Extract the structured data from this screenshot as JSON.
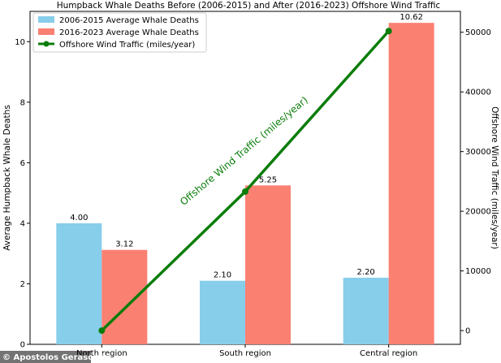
{
  "chart_data": {
    "type": "bar",
    "title": "Humpback Whale Deaths Before (2006-2015) and After (2016-2023) Offshore Wind Traffic",
    "categories": [
      "North region",
      "South region",
      "Central region"
    ],
    "ylabel": "Average Humpback Whale Deaths",
    "ylabel_right": "Offshore Wind Traffic (miles/year)",
    "ylim": [
      0,
      11
    ],
    "ylim_right": [
      -2300,
      53500
    ],
    "yticks": [
      0,
      2,
      4,
      6,
      8,
      10
    ],
    "yticks_right": [
      0,
      10000,
      20000,
      30000,
      40000,
      50000
    ],
    "legend_position": "top-left",
    "grid": false,
    "series": [
      {
        "name": "2006-2015 Average Whale Deaths",
        "kind": "bar",
        "axis": "left",
        "color": "#87ceeb",
        "values": [
          4.0,
          2.1,
          2.2
        ],
        "labels": [
          "4.00",
          "2.10",
          "2.20"
        ]
      },
      {
        "name": "2016-2023 Average Whale Deaths",
        "kind": "bar",
        "axis": "left",
        "color": "#fa8072",
        "values": [
          3.12,
          5.25,
          10.62
        ],
        "labels": [
          "3.12",
          "5.25",
          "10.62"
        ]
      },
      {
        "name": "Offshore Wind  Traffic (miles/year)",
        "kind": "line",
        "axis": "right",
        "color": "#0a7d0a",
        "values": [
          0,
          23300,
          50200
        ]
      }
    ],
    "annotation": "Offshore Wind  Traffic (miles/year)",
    "credit": "© Apostolos Gerasoulis"
  }
}
